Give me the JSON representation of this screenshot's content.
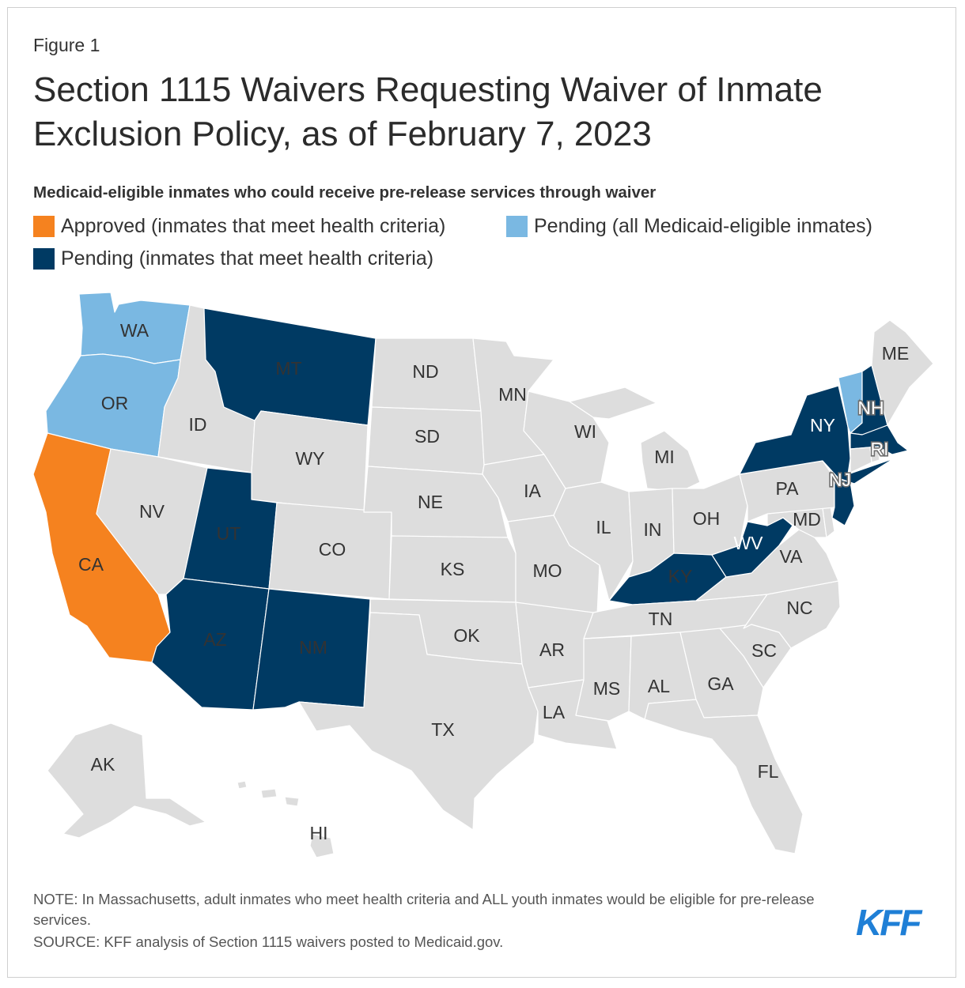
{
  "figure_label": "Figure 1",
  "title": "Section 1115 Waivers Requesting Waiver of Inmate Exclusion Policy, as of February 7, 2023",
  "subtitle": "Medicaid-eligible inmates who could receive pre-release services through waiver",
  "colors": {
    "approved": "#f5821f",
    "pending_all": "#7ab8e2",
    "pending_health": "#003a63",
    "none": "#dddddd",
    "border": "#ffffff"
  },
  "legend": [
    {
      "key": "approved",
      "label": "Approved (inmates that meet health criteria)",
      "color": "#f5821f"
    },
    {
      "key": "pending_all",
      "label": "Pending (all Medicaid-eligible inmates)",
      "color": "#7ab8e2"
    },
    {
      "key": "pending_health",
      "label": "Pending (inmates that meet health criteria)",
      "color": "#003a63"
    }
  ],
  "states": {
    "WA": "pending_all",
    "OR": "pending_all",
    "VT": "pending_all",
    "CA": "approved",
    "MT": "pending_health",
    "UT": "pending_health",
    "AZ": "pending_health",
    "NM": "pending_health",
    "NY": "pending_health",
    "NH": "pending_health",
    "MA": "pending_health",
    "NJ": "pending_health",
    "KY": "pending_health",
    "WV": "pending_health",
    "ID": "none",
    "NV": "none",
    "WY": "none",
    "CO": "none",
    "ND": "none",
    "SD": "none",
    "NE": "none",
    "KS": "none",
    "OK": "none",
    "TX": "none",
    "MN": "none",
    "IA": "none",
    "MO": "none",
    "AR": "none",
    "LA": "none",
    "WI": "none",
    "IL": "none",
    "MI": "none",
    "IN": "none",
    "OH": "none",
    "TN": "none",
    "MS": "none",
    "AL": "none",
    "GA": "none",
    "FL": "none",
    "SC": "none",
    "NC": "none",
    "VA": "none",
    "PA": "none",
    "MD": "none",
    "DE": "none",
    "CT": "none",
    "RI": "none",
    "ME": "none",
    "AK": "none",
    "HI": "none"
  },
  "state_labels": [
    "WA",
    "OR",
    "CA",
    "ID",
    "NV",
    "MT",
    "WY",
    "UT",
    "CO",
    "AZ",
    "NM",
    "ND",
    "SD",
    "NE",
    "KS",
    "OK",
    "TX",
    "MN",
    "IA",
    "MO",
    "AR",
    "LA",
    "WI",
    "IL",
    "MI",
    "IN",
    "OH",
    "KY",
    "TN",
    "MS",
    "AL",
    "GA",
    "FL",
    "SC",
    "NC",
    "VA",
    "WV",
    "MD",
    "PA",
    "NY",
    "NJ",
    "NH",
    "RI",
    "ME",
    "AK",
    "HI"
  ],
  "note": "NOTE: In Massachusetts, adult inmates who meet health criteria and ALL youth inmates would be eligible for pre-release services.",
  "source": "SOURCE: KFF analysis of Section 1115 waivers posted to Medicaid.gov.",
  "logo_text": "KFF"
}
